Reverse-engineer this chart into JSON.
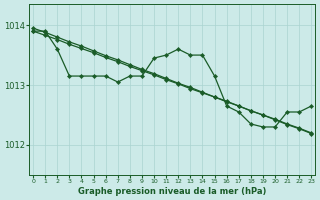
{
  "xlabel": "Graphe pression niveau de la mer (hPa)",
  "xlim_left": -0.3,
  "xlim_right": 23.3,
  "ylim_bottom": 1011.5,
  "ylim_top": 1014.35,
  "yticks": [
    1012,
    1013,
    1014
  ],
  "xticks": [
    0,
    1,
    2,
    3,
    4,
    5,
    6,
    7,
    8,
    9,
    10,
    11,
    12,
    13,
    14,
    15,
    16,
    17,
    18,
    19,
    20,
    21,
    22,
    23
  ],
  "bg_color": "#cceae8",
  "grid_color": "#aad4d0",
  "line_color": "#1a5c28",
  "markersize": 2.2,
  "linewidth": 0.9,
  "series_wavy": [
    1013.9,
    1013.9,
    1013.6,
    1013.15,
    1013.15,
    1013.15,
    1013.15,
    1013.05,
    1013.15,
    1013.15,
    1013.45,
    1013.5,
    1013.6,
    1013.5,
    1013.5,
    1013.15,
    1012.65,
    1012.55,
    1012.35,
    1012.3,
    1012.3,
    1012.55,
    1012.55,
    1012.65
  ],
  "series_diag1": [
    1013.95,
    1013.88,
    1013.8,
    1013.72,
    1013.65,
    1013.57,
    1013.49,
    1013.42,
    1013.34,
    1013.26,
    1013.19,
    1013.11,
    1013.03,
    1012.96,
    1012.88,
    1012.8,
    1012.73,
    1012.65,
    1012.57,
    1012.5,
    1012.42,
    1012.34,
    1012.27,
    1012.19
  ],
  "series_diag2": [
    1013.9,
    1013.83,
    1013.76,
    1013.68,
    1013.61,
    1013.54,
    1013.46,
    1013.39,
    1013.31,
    1013.24,
    1013.17,
    1013.09,
    1013.02,
    1012.94,
    1012.87,
    1012.8,
    1012.72,
    1012.65,
    1012.57,
    1012.5,
    1012.43,
    1012.35,
    1012.28,
    1012.2
  ]
}
